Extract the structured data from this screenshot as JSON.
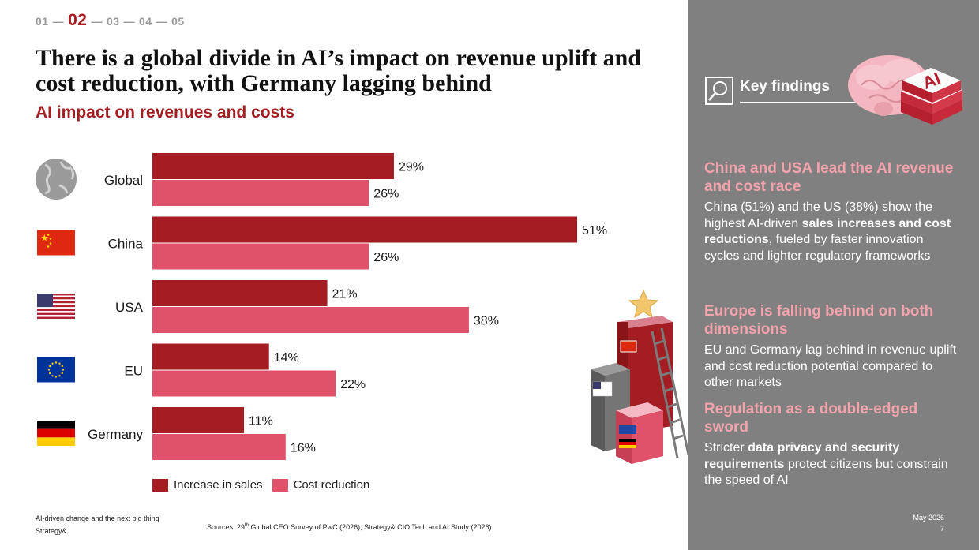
{
  "nav": {
    "steps": [
      "01",
      "02",
      "03",
      "04",
      "05"
    ],
    "active": "02",
    "separator": "—"
  },
  "title": "There is a global divide in AI’s impact on revenue uplift and cost reduction, with Germany lagging behind",
  "subtitle": "AI impact on revenues and costs",
  "colors": {
    "sales": "#a31d22",
    "cost": "#e05269",
    "accent": "#a31d22",
    "panel": "#808080",
    "panel_heading": "#f3a3ae"
  },
  "chart_data": {
    "type": "bar",
    "orientation": "horizontal",
    "categories": [
      "Global",
      "China",
      "USA",
      "EU",
      "Germany"
    ],
    "category_icons": [
      "globe-icon",
      "china-flag-icon",
      "usa-flag-icon",
      "eu-flag-icon",
      "germany-flag-icon"
    ],
    "series": [
      {
        "name": "Increase in sales",
        "values": [
          29,
          51,
          21,
          14,
          11
        ],
        "labels": [
          "29%",
          "51%",
          "21%",
          "14%",
          "11%"
        ]
      },
      {
        "name": "Cost reduction",
        "values": [
          26,
          26,
          38,
          22,
          16
        ],
        "labels": [
          "26%",
          "26%",
          "38%",
          "22%",
          "16%"
        ]
      }
    ],
    "value_unit": "%",
    "legend_position": "bottom",
    "grid": false
  },
  "legend": {
    "sales": "Increase in sales",
    "cost": "Cost reduction"
  },
  "footer": {
    "left_line1": "AI-driven change and the next big thing",
    "left_line2": "Strategy&",
    "sources_prefix": "Sources: 29",
    "sources_sup": "th",
    "sources_rest": " Global CEO Survey of PwC (2026), Strategy& CIO Tech and AI Study (2026)"
  },
  "panel": {
    "key_findings_label": "Key findings",
    "key_findings_icon": "magnifier-icon",
    "brain_badge": "AI",
    "findings": [
      {
        "heading": "China and USA lead the AI revenue and cost race",
        "text_a": "China (51%) and the US (38%) show the highest AI-driven ",
        "bold": "sales increases and cost reductions",
        "text_b": ", fueled by faster innovation cycles and lighter regulatory frameworks"
      },
      {
        "heading": "Europe is falling behind on both dimensions",
        "text_a": "EU and Germany lag behind in revenue uplift and cost reduction potential compared to other markets"
      },
      {
        "heading": "Regulation as a double-edged sword",
        "text_a": "Stricter ",
        "bold": "data privacy and security requirements",
        "text_b": " protect citizens but constrain the speed of AI"
      }
    ],
    "date": "May 2026",
    "page": "7"
  }
}
